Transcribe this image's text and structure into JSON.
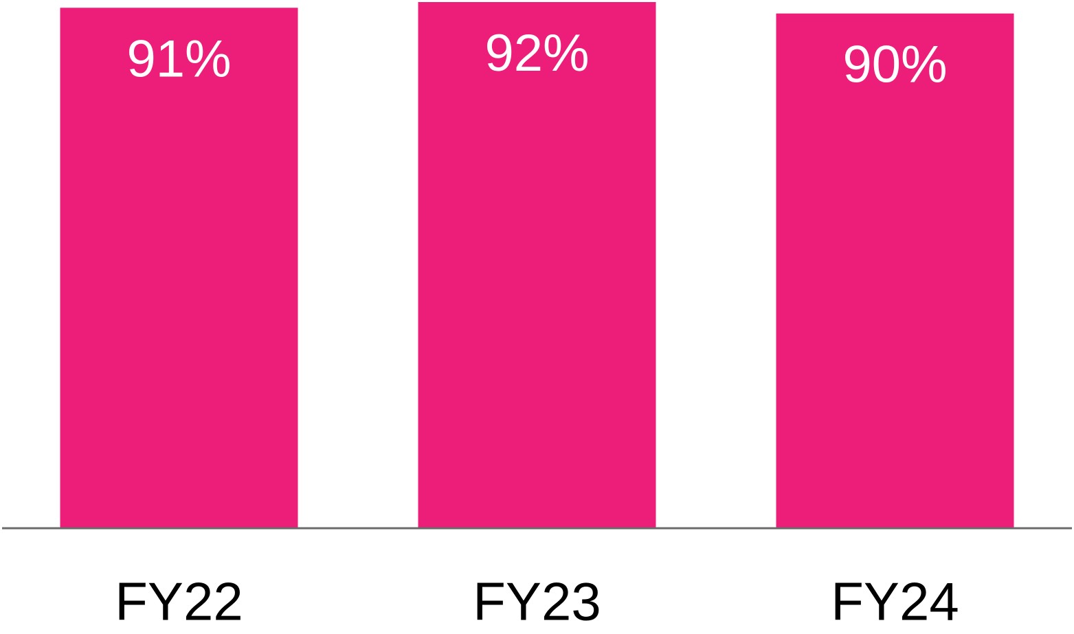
{
  "chart_data": {
    "type": "bar",
    "categories": [
      "FY22",
      "FY23",
      "FY24"
    ],
    "values": [
      91,
      92,
      90
    ],
    "value_labels": [
      "91%",
      "92%",
      "90%"
    ],
    "color": "#ed1e79"
  }
}
